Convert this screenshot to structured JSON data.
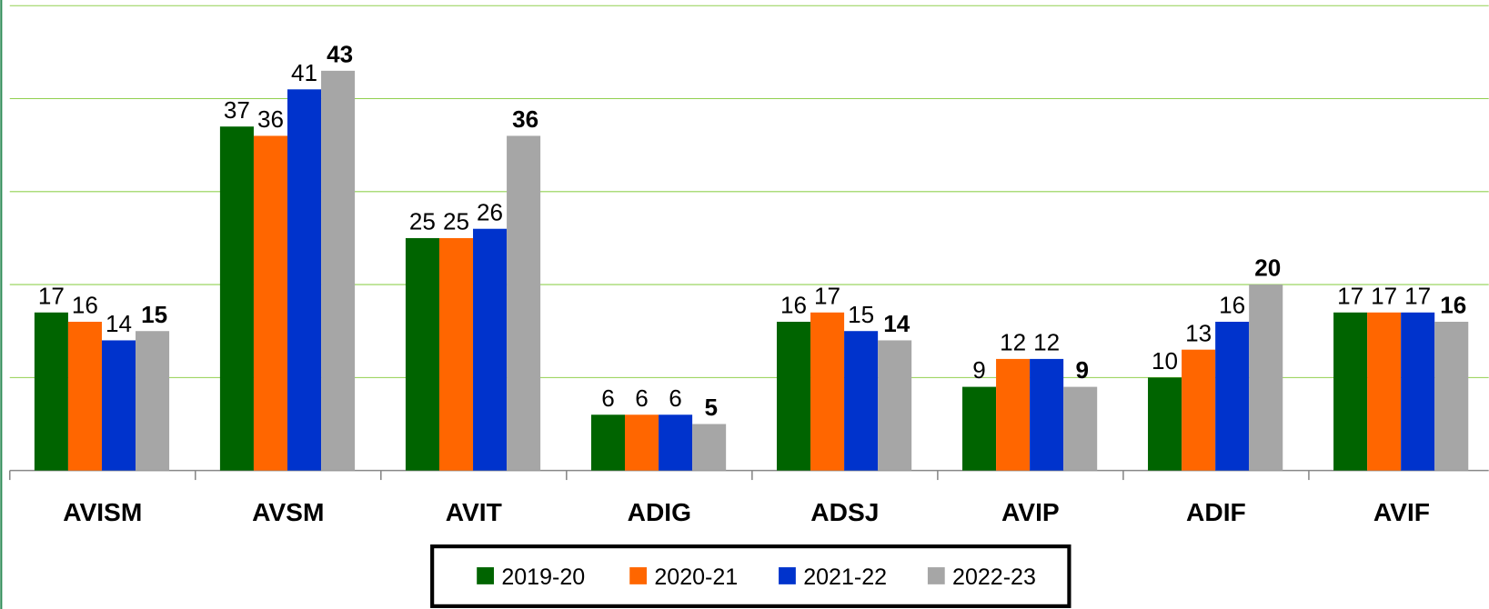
{
  "chart_data": {
    "type": "bar",
    "categories": [
      "AVISM",
      "AVSM",
      "AVIT",
      "ADIG",
      "ADSJ",
      "AVIP",
      "ADIF",
      "AVIF"
    ],
    "series": [
      {
        "name": "2019-20",
        "color": "#006400",
        "values": [
          17,
          37,
          25,
          6,
          16,
          9,
          10,
          17
        ]
      },
      {
        "name": "2020-21",
        "color": "#ff6600",
        "values": [
          16,
          36,
          25,
          6,
          17,
          12,
          13,
          17
        ]
      },
      {
        "name": "2021-22",
        "color": "#0033cc",
        "values": [
          14,
          41,
          26,
          6,
          15,
          12,
          16,
          17
        ]
      },
      {
        "name": "2022-23",
        "color": "#a6a6a6",
        "values": [
          15,
          43,
          36,
          5,
          14,
          9,
          20,
          16
        ]
      }
    ],
    "ylim": [
      0,
      50
    ],
    "yticks": [
      0,
      10,
      20,
      30,
      40,
      50
    ],
    "grid": true,
    "legend": "bottom"
  }
}
